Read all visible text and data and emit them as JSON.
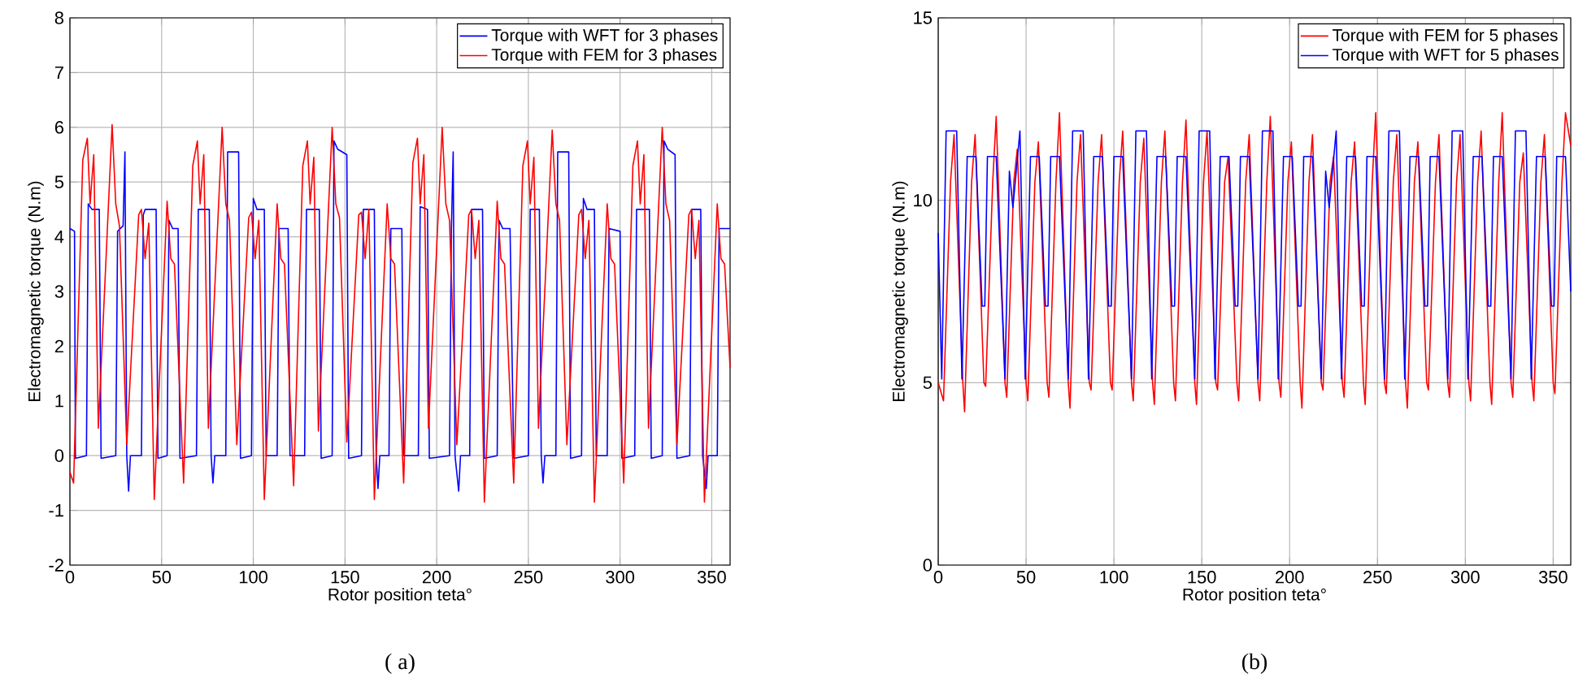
{
  "chart_data": [
    {
      "type": "line",
      "xlabel": "Rotor position teta°",
      "ylabel": "Electromagnetic torque (N.m)",
      "xlim": [
        0,
        360
      ],
      "xticks": [
        0,
        50,
        100,
        150,
        200,
        250,
        300,
        350
      ],
      "ylim": [
        -2,
        8
      ],
      "yticks": [
        -2,
        -1,
        0,
        1,
        2,
        3,
        4,
        5,
        6,
        7,
        8
      ],
      "grid": true,
      "legend": "top right",
      "marker": "none",
      "line_style": "solid",
      "annotations": [
        "( a)"
      ],
      "series": [
        {
          "name": "Torque with WFT for 3 phases",
          "color": "#0000ff",
          "x": [
            0,
            2.5,
            3,
            9,
            10,
            12,
            16,
            17,
            25,
            26,
            29,
            30,
            31,
            32,
            33,
            39,
            40,
            41,
            47,
            48,
            53,
            54,
            56,
            59,
            60,
            69,
            70,
            76,
            77,
            78,
            79,
            85,
            86,
            92,
            93,
            99,
            100,
            102,
            106,
            107,
            113,
            114,
            119,
            120,
            128,
            129,
            136,
            137,
            143,
            144,
            146,
            151,
            152,
            159,
            160,
            166,
            167,
            168,
            169,
            174,
            175,
            180,
            181,
            182,
            190,
            191,
            195,
            196,
            207,
            208,
            209,
            210,
            212,
            213,
            218,
            219,
            225,
            226,
            233,
            234,
            236,
            240,
            242,
            250,
            251,
            256,
            257,
            258,
            259,
            265,
            266,
            272,
            273,
            279,
            280,
            282,
            286,
            287,
            293,
            294,
            300,
            301,
            308,
            309,
            316,
            317,
            323,
            324,
            326,
            330,
            331,
            338,
            339,
            344,
            345,
            347,
            348,
            353,
            354,
            360
          ],
          "values": [
            4.15,
            4.1,
            -0.05,
            0,
            4.6,
            4.5,
            4.5,
            -0.05,
            0,
            4.1,
            4.2,
            5.55,
            0,
            -0.65,
            0,
            0,
            4.4,
            4.5,
            4.5,
            -0.05,
            0,
            4.3,
            4.15,
            4.15,
            -0.05,
            0,
            4.5,
            4.5,
            0,
            -0.5,
            0,
            0,
            5.55,
            5.55,
            -0.05,
            0,
            4.7,
            4.5,
            4.5,
            0,
            0,
            4.15,
            4.15,
            0,
            0,
            4.5,
            4.5,
            -0.05,
            0,
            5.75,
            5.6,
            5.5,
            -0.05,
            0,
            4.5,
            4.5,
            0,
            -0.6,
            0,
            0,
            4.15,
            4.15,
            4.15,
            0,
            0,
            4.55,
            4.5,
            -0.05,
            0,
            4.1,
            5.55,
            0,
            -0.65,
            0,
            0,
            4.5,
            4.5,
            -0.05,
            0,
            4.3,
            4.15,
            4.15,
            -0.05,
            0,
            4.5,
            4.5,
            0,
            -0.5,
            0,
            0,
            5.55,
            5.55,
            -0.05,
            0,
            4.7,
            4.5,
            4.5,
            0,
            0,
            4.15,
            4.1,
            -0.05,
            0,
            4.5,
            4.5,
            -0.05,
            0,
            5.75,
            5.6,
            5.5,
            -0.05,
            0,
            4.5,
            4.5,
            0,
            -0.6,
            0,
            0,
            4.15,
            4.15
          ]
        },
        {
          "name": "Torque with FEM for 3 phases",
          "color": "#ff0000",
          "x": [
            0,
            2,
            7,
            9.5,
            11,
            13,
            15.5,
            23,
            25,
            27,
            31,
            37.5,
            39,
            41,
            43,
            46,
            53,
            55,
            57,
            62,
            67,
            69.5,
            71,
            73,
            75.5,
            83,
            85,
            87,
            91,
            97.5,
            99,
            101,
            103,
            106,
            113,
            115,
            117,
            122,
            127,
            129.5,
            131,
            133,
            135.5,
            143,
            145,
            147,
            151,
            157.5,
            159,
            161,
            163,
            166,
            173,
            175,
            177,
            182,
            187,
            189.5,
            191,
            193,
            195.5,
            203,
            205,
            207,
            211,
            217.5,
            219,
            221,
            223,
            226,
            233,
            235,
            237,
            242,
            247,
            249.5,
            251,
            253,
            255.5,
            263,
            265,
            267,
            271,
            277.5,
            279,
            281,
            283,
            286,
            293,
            295,
            297,
            302,
            307,
            309.5,
            311,
            313,
            315.5,
            323,
            325,
            327,
            331,
            337.5,
            339,
            341,
            343,
            346,
            353,
            355,
            357,
            360
          ],
          "values": [
            -0.3,
            -0.5,
            5.4,
            5.8,
            4.6,
            5.5,
            0.5,
            6.05,
            4.6,
            4.2,
            0.2,
            4.4,
            4.5,
            3.6,
            4.25,
            -0.8,
            4.65,
            3.6,
            3.5,
            -0.5,
            5.3,
            5.75,
            4.6,
            5.5,
            0.5,
            6.0,
            4.6,
            4.3,
            0.2,
            4.35,
            4.45,
            3.6,
            4.3,
            -0.8,
            4.6,
            3.6,
            3.5,
            -0.55,
            5.3,
            5.75,
            4.6,
            5.45,
            0.45,
            6.0,
            4.6,
            4.35,
            0.25,
            4.4,
            4.45,
            3.6,
            4.5,
            -0.8,
            4.6,
            3.6,
            3.5,
            -0.5,
            5.35,
            5.8,
            4.6,
            5.5,
            0.5,
            6.0,
            4.6,
            4.3,
            0.2,
            4.4,
            4.5,
            3.6,
            4.3,
            -0.85,
            4.65,
            3.6,
            3.5,
            -0.5,
            5.3,
            5.75,
            4.6,
            5.45,
            0.5,
            5.95,
            4.6,
            4.3,
            0.2,
            4.4,
            4.5,
            3.6,
            4.3,
            -0.85,
            4.6,
            3.6,
            3.5,
            -0.5,
            5.3,
            5.75,
            4.6,
            5.5,
            0.5,
            6.0,
            4.6,
            4.3,
            0.2,
            4.4,
            4.5,
            3.6,
            4.3,
            -0.85,
            4.6,
            3.6,
            3.5,
            1.6
          ]
        }
      ]
    },
    {
      "type": "line",
      "xlabel": "Rotor position teta°",
      "ylabel": "Electromagnetic torque (N.m)",
      "xlim": [
        0,
        360
      ],
      "xticks": [
        0,
        50,
        100,
        150,
        200,
        250,
        300,
        350
      ],
      "ylim": [
        0,
        15
      ],
      "yticks": [
        0,
        5,
        10,
        15
      ],
      "grid": true,
      "legend": "top right",
      "marker": "none",
      "line_style": "solid",
      "annotations": [
        "(b)"
      ],
      "series": [
        {
          "name": "Torque with FEM for 5 phases",
          "color": "#ff0000",
          "x": [
            0,
            3,
            7,
            9,
            14,
            15,
            19,
            21,
            26,
            27,
            31,
            33,
            38,
            39,
            43,
            45,
            50,
            51,
            55,
            57,
            62,
            63,
            67,
            69,
            74,
            75,
            79,
            81,
            86,
            87,
            91,
            93,
            98,
            99,
            103,
            105,
            110,
            111,
            115,
            117,
            122,
            123,
            127,
            129,
            134,
            135,
            139,
            141,
            146,
            147,
            151,
            153,
            158,
            159,
            163,
            165,
            170,
            171,
            175,
            177,
            182,
            183,
            187,
            189,
            194,
            195,
            199,
            201,
            206,
            207,
            211,
            213,
            218,
            219,
            223,
            225,
            230,
            231,
            235,
            237,
            242,
            243,
            247,
            249,
            254,
            255,
            259,
            261,
            266,
            267,
            271,
            273,
            278,
            279,
            283,
            285,
            290,
            291,
            295,
            297,
            302,
            303,
            307,
            309,
            314,
            315,
            319,
            321,
            326,
            327,
            331,
            333,
            338,
            339,
            343,
            345,
            350,
            351,
            355,
            357,
            360
          ],
          "values": [
            5.0,
            4.5,
            10.5,
            11.8,
            5.0,
            4.2,
            10.5,
            11.8,
            5.0,
            4.9,
            10.5,
            12.3,
            5.0,
            4.6,
            10.5,
            11.4,
            5.0,
            4.5,
            10.5,
            11.6,
            5.0,
            4.6,
            10.5,
            12.4,
            5.0,
            4.3,
            10.5,
            11.8,
            5.0,
            4.8,
            10.5,
            11.8,
            5.0,
            4.8,
            10.5,
            11.9,
            5.0,
            4.5,
            10.5,
            11.7,
            5.0,
            4.4,
            10.5,
            11.9,
            5.0,
            4.5,
            10.5,
            12.2,
            5.0,
            4.4,
            10.5,
            11.9,
            5.0,
            4.8,
            10.5,
            11.2,
            5.0,
            4.5,
            10.5,
            11.8,
            5.0,
            4.5,
            10.5,
            12.3,
            5.0,
            4.6,
            10.5,
            11.6,
            5.0,
            4.3,
            10.5,
            11.8,
            5.0,
            4.8,
            10.5,
            11.2,
            5.0,
            4.6,
            10.5,
            11.6,
            5.0,
            4.4,
            10.5,
            12.4,
            5.0,
            4.7,
            10.5,
            11.8,
            5.0,
            4.3,
            10.5,
            11.6,
            5.0,
            4.8,
            10.5,
            11.8,
            5.0,
            4.6,
            10.5,
            11.8,
            5.0,
            4.5,
            10.5,
            11.9,
            5.0,
            4.4,
            10.5,
            12.4,
            5.0,
            4.6,
            10.5,
            11.3,
            5.0,
            4.5,
            10.5,
            11.8,
            5.0,
            4.7,
            10.5,
            12.4,
            11.5
          ]
        },
        {
          "name": "Torque with WFT for 5 phases",
          "color": "#0000ff",
          "x": [
            0,
            2,
            4.5,
            10.5,
            13.5,
            16.5,
            21.5,
            25,
            26.5,
            28,
            33,
            38,
            40.5,
            42.5,
            46.5,
            49.5,
            52.5,
            57.5,
            61,
            62.5,
            64,
            69,
            74,
            76.5,
            82.5,
            85.5,
            88.5,
            93.5,
            97,
            98.5,
            100,
            105,
            110,
            112.5,
            118.5,
            121.5,
            124.5,
            129.5,
            133,
            134.5,
            136,
            141,
            146,
            148.5,
            154.5,
            157.5,
            160.5,
            165.5,
            169,
            170.5,
            172,
            177,
            182,
            184.5,
            190.5,
            193.5,
            196.5,
            201.5,
            205,
            206.5,
            208,
            213,
            218,
            220.5,
            222.5,
            226.5,
            229.5,
            232.5,
            237.5,
            241,
            242.5,
            244,
            249,
            254,
            256.5,
            262.5,
            265.5,
            268.5,
            273.5,
            277,
            278.5,
            280,
            285,
            290,
            292.5,
            298.5,
            301.5,
            304.5,
            309.5,
            313,
            314.5,
            316,
            321,
            326,
            328.5,
            334.5,
            337.5,
            340.5,
            345.5,
            349,
            350.5,
            352,
            357,
            360
          ],
          "values": [
            9.1,
            5.1,
            11.9,
            11.9,
            5.1,
            11.2,
            11.2,
            7.1,
            7.1,
            11.2,
            11.2,
            5.1,
            10.8,
            9.8,
            11.9,
            5.1,
            11.2,
            11.2,
            7.1,
            7.1,
            11.2,
            11.2,
            5.1,
            11.9,
            11.9,
            5.1,
            11.2,
            11.2,
            7.1,
            7.1,
            11.2,
            11.2,
            5.1,
            11.9,
            11.9,
            5.1,
            11.2,
            11.2,
            7.1,
            7.1,
            11.2,
            11.2,
            5.1,
            11.9,
            11.9,
            5.1,
            11.2,
            11.2,
            7.1,
            7.1,
            11.2,
            11.2,
            5.1,
            11.9,
            11.9,
            5.1,
            11.2,
            11.2,
            7.1,
            7.1,
            11.2,
            11.2,
            5.1,
            10.8,
            9.8,
            11.9,
            5.1,
            11.2,
            11.2,
            7.1,
            7.1,
            11.2,
            11.2,
            5.1,
            11.9,
            11.9,
            5.1,
            11.2,
            11.2,
            7.1,
            7.1,
            11.2,
            11.2,
            5.1,
            11.9,
            11.9,
            5.1,
            11.2,
            11.2,
            7.1,
            7.1,
            11.2,
            11.2,
            5.1,
            11.9,
            11.9,
            5.1,
            11.2,
            11.2,
            7.1,
            7.1,
            11.2,
            11.2,
            7.5
          ]
        }
      ]
    }
  ]
}
